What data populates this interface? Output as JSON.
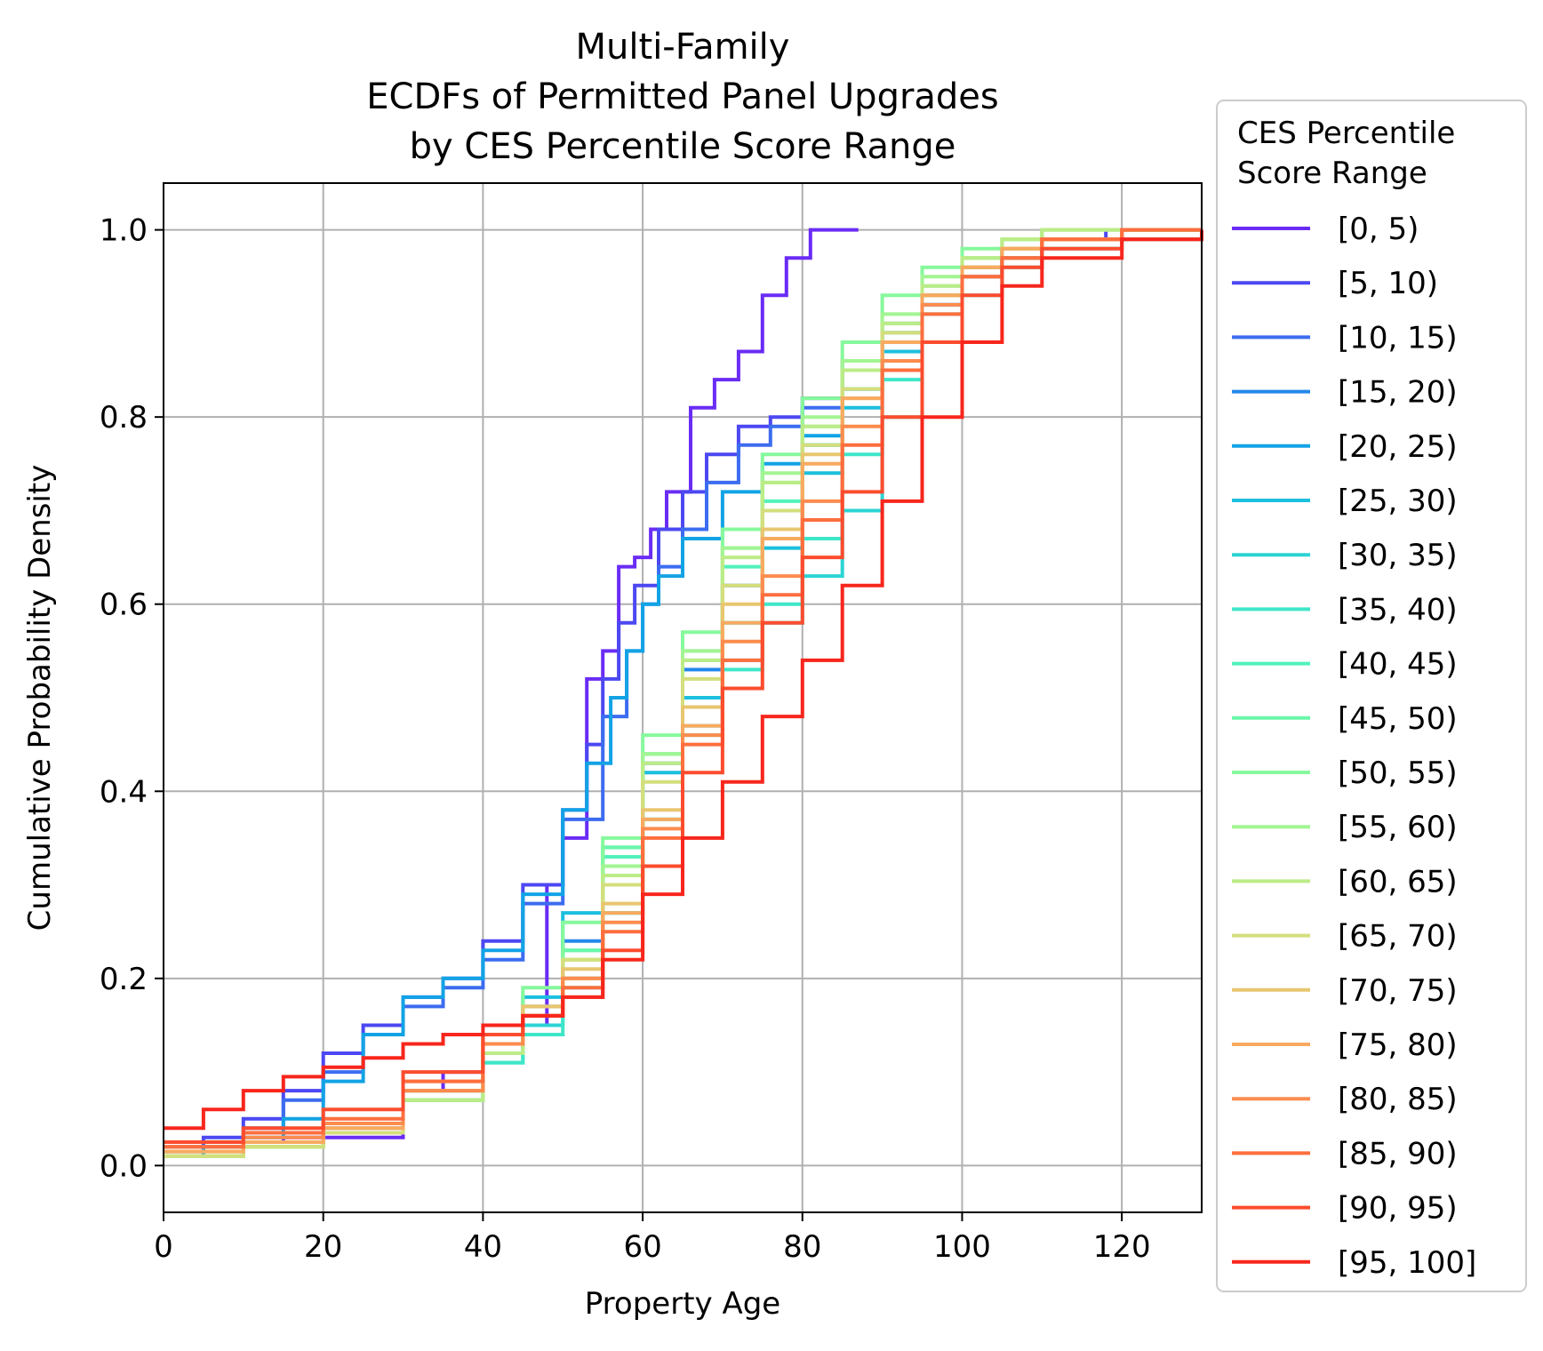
{
  "chart_data": {
    "type": "line",
    "step": true,
    "title_lines": [
      "Multi-Family",
      "ECDFs of Permitted Panel Upgrades",
      "by CES Percentile Score Range"
    ],
    "xlabel": "Property Age",
    "ylabel": "Cumulative Probability Density",
    "xlim": [
      0,
      130
    ],
    "ylim": [
      -0.05,
      1.05
    ],
    "x_ticks": [
      "0",
      "20",
      "40",
      "60",
      "80",
      "100",
      "120"
    ],
    "y_ticks": [
      "0.0",
      "0.2",
      "0.4",
      "0.6",
      "0.8",
      "1.0"
    ],
    "grid": true,
    "legend_title_lines": [
      "CES Percentile",
      "Score Range"
    ],
    "legend_placement": "outside right",
    "series": [
      {
        "name": "[0, 5)",
        "color": "#6a2cf5",
        "x": [
          0,
          5,
          10,
          15,
          20,
          25,
          27,
          30,
          35,
          40,
          45,
          48,
          50,
          53,
          55,
          57,
          59,
          61,
          63,
          66,
          69,
          72,
          75,
          78,
          81,
          87
        ],
        "y": [
          0.01,
          0.02,
          0.025,
          0.03,
          0.03,
          0.03,
          0.03,
          0.08,
          0.1,
          0.12,
          0.15,
          0.3,
          0.35,
          0.52,
          0.55,
          0.64,
          0.65,
          0.68,
          0.72,
          0.81,
          0.84,
          0.87,
          0.93,
          0.97,
          1.0,
          1.0
        ]
      },
      {
        "name": "[5, 10)",
        "color": "#4c48f2",
        "x": [
          0,
          5,
          10,
          15,
          20,
          25,
          30,
          35,
          40,
          45,
          50,
          53,
          55,
          57,
          59,
          62,
          65,
          68,
          72,
          76,
          80,
          85,
          90,
          95,
          100,
          105,
          110,
          118
        ],
        "y": [
          0.02,
          0.03,
          0.05,
          0.08,
          0.12,
          0.15,
          0.18,
          0.2,
          0.24,
          0.3,
          0.38,
          0.45,
          0.52,
          0.58,
          0.62,
          0.68,
          0.72,
          0.76,
          0.79,
          0.8,
          0.82,
          0.86,
          0.9,
          0.93,
          0.96,
          0.98,
          0.99,
          1.0
        ]
      },
      {
        "name": "[10, 15)",
        "color": "#3c6cf0",
        "x": [
          0,
          5,
          10,
          15,
          20,
          25,
          30,
          35,
          40,
          45,
          50,
          55,
          58,
          60,
          62,
          65,
          68,
          72,
          76,
          80,
          85,
          90,
          95,
          100,
          105,
          110,
          120
        ],
        "y": [
          0.015,
          0.025,
          0.04,
          0.07,
          0.1,
          0.14,
          0.17,
          0.19,
          0.22,
          0.28,
          0.37,
          0.48,
          0.55,
          0.6,
          0.64,
          0.68,
          0.73,
          0.77,
          0.79,
          0.81,
          0.85,
          0.88,
          0.92,
          0.95,
          0.97,
          0.99,
          1.0
        ]
      },
      {
        "name": "[15, 20)",
        "color": "#2588ec",
        "x": [
          0,
          10,
          20,
          30,
          40,
          45,
          50,
          55,
          60,
          65,
          70,
          75,
          80,
          85,
          90,
          95,
          100,
          105,
          110,
          120,
          130
        ],
        "y": [
          0.01,
          0.02,
          0.04,
          0.08,
          0.12,
          0.17,
          0.24,
          0.32,
          0.43,
          0.53,
          0.62,
          0.7,
          0.77,
          0.83,
          0.89,
          0.93,
          0.96,
          0.98,
          0.99,
          1.0,
          1.0
        ]
      },
      {
        "name": "[20, 25)",
        "color": "#12a3e5",
        "x": [
          0,
          5,
          10,
          15,
          20,
          25,
          30,
          35,
          40,
          45,
          50,
          53,
          56,
          58,
          60,
          62,
          65,
          70,
          75,
          80,
          85,
          90,
          95,
          100,
          105,
          110,
          120
        ],
        "y": [
          0.01,
          0.02,
          0.03,
          0.05,
          0.09,
          0.14,
          0.18,
          0.2,
          0.23,
          0.29,
          0.38,
          0.43,
          0.5,
          0.55,
          0.6,
          0.63,
          0.67,
          0.72,
          0.75,
          0.78,
          0.83,
          0.88,
          0.93,
          0.96,
          0.98,
          0.99,
          1.0
        ]
      },
      {
        "name": "[25, 30)",
        "color": "#1cbfde",
        "x": [
          0,
          10,
          20,
          30,
          40,
          45,
          50,
          55,
          60,
          65,
          70,
          75,
          80,
          85,
          90,
          95,
          100,
          105,
          110,
          120,
          130
        ],
        "y": [
          0.01,
          0.02,
          0.035,
          0.07,
          0.12,
          0.18,
          0.27,
          0.34,
          0.42,
          0.5,
          0.58,
          0.66,
          0.74,
          0.81,
          0.87,
          0.92,
          0.95,
          0.97,
          0.99,
          1.0,
          1.0
        ]
      },
      {
        "name": "[30, 35)",
        "color": "#2cd4d4",
        "x": [
          0,
          10,
          20,
          30,
          40,
          45,
          50,
          55,
          60,
          65,
          70,
          75,
          80,
          85,
          90,
          95,
          100,
          105,
          110,
          120,
          130
        ],
        "y": [
          0.01,
          0.02,
          0.035,
          0.07,
          0.11,
          0.15,
          0.2,
          0.27,
          0.37,
          0.47,
          0.54,
          0.58,
          0.63,
          0.7,
          0.8,
          0.88,
          0.93,
          0.96,
          0.98,
          0.99,
          1.0
        ]
      },
      {
        "name": "[35, 40)",
        "color": "#3ee6c8",
        "x": [
          0,
          10,
          20,
          30,
          40,
          45,
          50,
          55,
          60,
          65,
          70,
          75,
          80,
          85,
          90,
          95,
          100,
          105,
          110,
          120,
          130
        ],
        "y": [
          0.01,
          0.02,
          0.035,
          0.07,
          0.11,
          0.14,
          0.19,
          0.27,
          0.37,
          0.46,
          0.53,
          0.6,
          0.67,
          0.76,
          0.84,
          0.91,
          0.95,
          0.97,
          0.99,
          1.0,
          1.0
        ]
      },
      {
        "name": "[40, 45)",
        "color": "#52f2ba",
        "x": [
          0,
          10,
          20,
          30,
          40,
          45,
          50,
          55,
          60,
          65,
          70,
          75,
          80,
          85,
          90,
          95,
          100,
          105,
          110,
          120,
          130
        ],
        "y": [
          0.01,
          0.02,
          0.035,
          0.07,
          0.12,
          0.16,
          0.23,
          0.33,
          0.44,
          0.54,
          0.64,
          0.71,
          0.77,
          0.83,
          0.89,
          0.93,
          0.96,
          0.98,
          0.99,
          1.0,
          1.0
        ]
      },
      {
        "name": "[45, 50)",
        "color": "#6af7aa",
        "x": [
          0,
          10,
          20,
          30,
          40,
          45,
          50,
          55,
          60,
          65,
          70,
          75,
          80,
          85,
          90,
          95,
          100,
          105,
          110,
          120,
          130
        ],
        "y": [
          0.01,
          0.02,
          0.035,
          0.07,
          0.12,
          0.16,
          0.23,
          0.34,
          0.44,
          0.55,
          0.66,
          0.73,
          0.79,
          0.85,
          0.9,
          0.94,
          0.97,
          0.98,
          0.99,
          1.0,
          1.0
        ]
      },
      {
        "name": "[50, 55)",
        "color": "#86f99c",
        "x": [
          0,
          10,
          20,
          30,
          40,
          45,
          50,
          55,
          60,
          65,
          70,
          75,
          80,
          85,
          90,
          95,
          100,
          105,
          110,
          120,
          130
        ],
        "y": [
          0.01,
          0.02,
          0.035,
          0.08,
          0.14,
          0.19,
          0.26,
          0.35,
          0.46,
          0.57,
          0.68,
          0.76,
          0.82,
          0.88,
          0.93,
          0.96,
          0.98,
          0.99,
          1.0,
          1.0,
          1.0
        ]
      },
      {
        "name": "[55, 60)",
        "color": "#a2f592",
        "x": [
          0,
          10,
          20,
          30,
          40,
          45,
          50,
          55,
          60,
          65,
          70,
          75,
          80,
          85,
          90,
          95,
          100,
          105,
          110,
          120,
          130
        ],
        "y": [
          0.01,
          0.02,
          0.035,
          0.07,
          0.12,
          0.16,
          0.22,
          0.32,
          0.44,
          0.55,
          0.66,
          0.74,
          0.8,
          0.86,
          0.91,
          0.95,
          0.97,
          0.99,
          1.0,
          1.0,
          1.0
        ]
      },
      {
        "name": "[60, 65)",
        "color": "#bcec86",
        "x": [
          0,
          10,
          20,
          30,
          40,
          45,
          50,
          55,
          60,
          65,
          70,
          75,
          80,
          85,
          90,
          95,
          100,
          105,
          110,
          120,
          130
        ],
        "y": [
          0.01,
          0.02,
          0.035,
          0.07,
          0.12,
          0.16,
          0.22,
          0.31,
          0.43,
          0.54,
          0.65,
          0.73,
          0.79,
          0.85,
          0.9,
          0.94,
          0.97,
          0.99,
          1.0,
          1.0,
          1.0
        ]
      },
      {
        "name": "[65, 70)",
        "color": "#d4de7c",
        "x": [
          0,
          10,
          20,
          30,
          40,
          45,
          50,
          55,
          60,
          65,
          70,
          75,
          80,
          85,
          90,
          95,
          100,
          105,
          110,
          120,
          130
        ],
        "y": [
          0.01,
          0.02,
          0.035,
          0.08,
          0.13,
          0.17,
          0.22,
          0.3,
          0.41,
          0.52,
          0.62,
          0.7,
          0.77,
          0.83,
          0.89,
          0.93,
          0.96,
          0.98,
          0.99,
          1.0,
          1.0
        ]
      },
      {
        "name": "[70, 75)",
        "color": "#e8c670",
        "x": [
          0,
          10,
          20,
          30,
          40,
          45,
          50,
          55,
          60,
          65,
          70,
          75,
          80,
          85,
          90,
          95,
          100,
          105,
          110,
          120,
          130
        ],
        "y": [
          0.015,
          0.025,
          0.04,
          0.09,
          0.14,
          0.17,
          0.21,
          0.28,
          0.38,
          0.49,
          0.6,
          0.68,
          0.76,
          0.82,
          0.88,
          0.93,
          0.96,
          0.98,
          0.99,
          1.0,
          1.0
        ]
      },
      {
        "name": "[75, 80)",
        "color": "#f8aa60",
        "x": [
          0,
          10,
          20,
          30,
          40,
          45,
          50,
          55,
          60,
          65,
          70,
          75,
          80,
          85,
          90,
          95,
          100,
          105,
          110,
          120,
          130
        ],
        "y": [
          0.015,
          0.025,
          0.04,
          0.08,
          0.13,
          0.16,
          0.2,
          0.27,
          0.37,
          0.47,
          0.58,
          0.67,
          0.75,
          0.82,
          0.88,
          0.93,
          0.96,
          0.98,
          0.99,
          1.0,
          1.0
        ]
      },
      {
        "name": "[80, 85)",
        "color": "#fc8c4e",
        "x": [
          0,
          10,
          20,
          30,
          40,
          45,
          50,
          55,
          60,
          65,
          70,
          75,
          80,
          85,
          90,
          95,
          100,
          105,
          110,
          120,
          130
        ],
        "y": [
          0.02,
          0.03,
          0.045,
          0.08,
          0.13,
          0.16,
          0.2,
          0.26,
          0.36,
          0.46,
          0.56,
          0.63,
          0.71,
          0.79,
          0.86,
          0.92,
          0.95,
          0.97,
          0.99,
          1.0,
          1.0
        ]
      },
      {
        "name": "[85, 90)",
        "color": "#fe6e3e",
        "x": [
          0,
          10,
          20,
          30,
          40,
          45,
          50,
          55,
          60,
          65,
          70,
          75,
          80,
          85,
          90,
          95,
          100,
          105,
          110,
          120,
          130
        ],
        "y": [
          0.02,
          0.035,
          0.05,
          0.09,
          0.14,
          0.16,
          0.19,
          0.25,
          0.35,
          0.45,
          0.54,
          0.61,
          0.69,
          0.77,
          0.85,
          0.91,
          0.95,
          0.97,
          0.99,
          1.0,
          1.0
        ]
      },
      {
        "name": "[90, 95)",
        "color": "#fc4c2e",
        "x": [
          0,
          10,
          20,
          30,
          40,
          45,
          50,
          55,
          60,
          65,
          70,
          75,
          80,
          85,
          90,
          95,
          100,
          105,
          110,
          120,
          130
        ],
        "y": [
          0.025,
          0.04,
          0.06,
          0.1,
          0.14,
          0.16,
          0.18,
          0.23,
          0.32,
          0.42,
          0.51,
          0.58,
          0.65,
          0.72,
          0.8,
          0.88,
          0.93,
          0.96,
          0.98,
          0.99,
          1.0
        ]
      },
      {
        "name": "[95, 100]",
        "color": "#f8261c",
        "x": [
          0,
          5,
          10,
          15,
          20,
          25,
          30,
          35,
          40,
          45,
          50,
          55,
          60,
          65,
          70,
          75,
          80,
          85,
          90,
          95,
          100,
          105,
          110,
          120,
          130
        ],
        "y": [
          0.04,
          0.06,
          0.08,
          0.095,
          0.105,
          0.115,
          0.13,
          0.14,
          0.15,
          0.16,
          0.18,
          0.22,
          0.29,
          0.35,
          0.41,
          0.48,
          0.54,
          0.62,
          0.71,
          0.8,
          0.88,
          0.94,
          0.97,
          0.99,
          1.0
        ]
      }
    ]
  }
}
